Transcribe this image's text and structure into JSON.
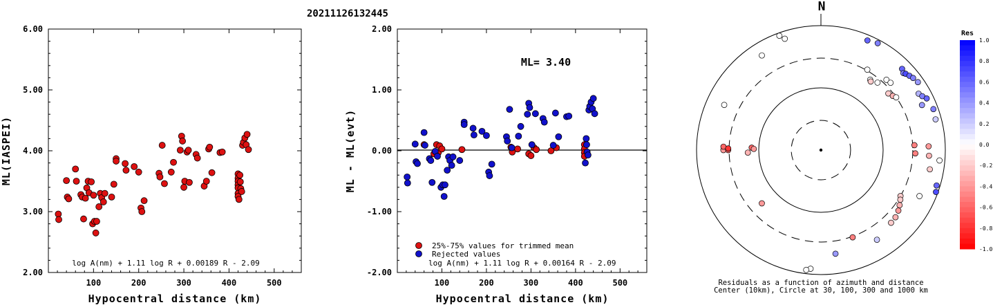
{
  "title": "20211126132445",
  "colors": {
    "red_point": "#dd1111",
    "blue_point": "#1111cc",
    "res_positive": "#0000ff",
    "res_negative": "#ff0000"
  },
  "chart_data": [
    {
      "type": "scatter",
      "id": "ml_vs_distance",
      "xlabel": "Hypocentral distance (km)",
      "ylabel": "ML(IASPEI)",
      "xlim": [
        0,
        560
      ],
      "ylim": [
        2.0,
        6.0
      ],
      "x_ticks": [
        "100",
        "200",
        "300",
        "400",
        "500"
      ],
      "y_ticks": [
        "2.00",
        "3.00",
        "4.00",
        "5.00",
        "6.00"
      ],
      "formula": "log A(nm) + 1.11 log R + 0.00189 R - 2.09",
      "series": [
        {
          "color": "#dd1111",
          "points": [
            [
              22,
              2.96
            ],
            [
              23,
              2.87
            ],
            [
              40,
              3.51
            ],
            [
              42,
              3.24
            ],
            [
              45,
              3.21
            ],
            [
              60,
              3.7
            ],
            [
              62,
              3.5
            ],
            [
              72,
              3.28
            ],
            [
              75,
              3.24
            ],
            [
              78,
              2.88
            ],
            [
              82,
              3.22
            ],
            [
              85,
              3.39
            ],
            [
              88,
              3.5
            ],
            [
              90,
              3.31
            ],
            [
              95,
              3.49
            ],
            [
              98,
              2.8
            ],
            [
              100,
              3.27
            ],
            [
              102,
              2.84
            ],
            [
              105,
              2.65
            ],
            [
              107,
              2.84
            ],
            [
              112,
              3.08
            ],
            [
              115,
              3.3
            ],
            [
              118,
              3.23
            ],
            [
              122,
              3.16
            ],
            [
              125,
              3.3
            ],
            [
              140,
              3.24
            ],
            [
              145,
              3.45
            ],
            [
              150,
              3.87
            ],
            [
              150,
              3.83
            ],
            [
              170,
              3.79
            ],
            [
              172,
              3.68
            ],
            [
              190,
              3.74
            ],
            [
              200,
              3.65
            ],
            [
              205,
              3.06
            ],
            [
              207,
              3.0
            ],
            [
              212,
              3.18
            ],
            [
              245,
              3.63
            ],
            [
              247,
              3.57
            ],
            [
              252,
              4.09
            ],
            [
              257,
              3.46
            ],
            [
              272,
              3.65
            ],
            [
              277,
              3.81
            ],
            [
              292,
              4.01
            ],
            [
              295,
              4.24
            ],
            [
              297,
              4.16
            ],
            [
              300,
              3.4
            ],
            [
              302,
              3.5
            ],
            [
              307,
              3.98
            ],
            [
              310,
              4.01
            ],
            [
              312,
              3.48
            ],
            [
              327,
              3.94
            ],
            [
              330,
              3.88
            ],
            [
              345,
              3.42
            ],
            [
              350,
              3.5
            ],
            [
              355,
              4.03
            ],
            [
              357,
              4.06
            ],
            [
              362,
              3.64
            ],
            [
              380,
              3.97
            ],
            [
              385,
              3.98
            ],
            [
              420,
              3.62
            ],
            [
              420,
              3.55
            ],
            [
              420,
              3.5
            ],
            [
              420,
              3.44
            ],
            [
              420,
              3.39
            ],
            [
              420,
              3.3
            ],
            [
              420,
              3.25
            ],
            [
              422,
              3.2
            ],
            [
              424,
              3.6
            ],
            [
              425,
              3.49
            ],
            [
              426,
              3.38
            ],
            [
              428,
              3.33
            ],
            [
              430,
              4.09
            ],
            [
              432,
              4.14
            ],
            [
              435,
              4.21
            ],
            [
              438,
              4.1
            ],
            [
              440,
              4.27
            ],
            [
              443,
              4.02
            ]
          ]
        }
      ]
    },
    {
      "type": "scatter",
      "id": "residual_vs_distance",
      "xlabel": "Hypocentral distance (km)",
      "ylabel": "ML - ML(evt)",
      "xlim": [
        0,
        560
      ],
      "ylim": [
        -2.0,
        2.0
      ],
      "x_ticks": [
        "100",
        "200",
        "300",
        "400",
        "500"
      ],
      "y_ticks": [
        "-2.00",
        "-1.00",
        "0.00",
        "1.00",
        "2.00"
      ],
      "annotation": "ML= 3.40",
      "formula": "log A(nm) + 1.11 log R + 0.00164 R - 2.09",
      "legend": [
        "25%-75% values for trimmed mean",
        "Rejected values"
      ],
      "series": [
        {
          "name": "25%-75% values for trimmed mean",
          "color": "#dd1111",
          "points": [
            [
              60,
              0.1
            ],
            [
              82,
              -0.05
            ],
            [
              88,
              0.1
            ],
            [
              92,
              -0.03
            ],
            [
              95,
              0.08
            ],
            [
              100,
              0.03
            ],
            [
              145,
              0.02
            ],
            [
              255,
              0.06
            ],
            [
              258,
              -0.02
            ],
            [
              270,
              0.03
            ],
            [
              295,
              -0.05
            ],
            [
              300,
              -0.08
            ],
            [
              307,
              0.05
            ],
            [
              312,
              0.02
            ],
            [
              345,
              0.0
            ],
            [
              357,
              0.05
            ],
            [
              420,
              0.1
            ],
            [
              420,
              0.03
            ],
            [
              420,
              -0.03
            ],
            [
              420,
              -0.09
            ]
          ]
        },
        {
          "name": "Rejected values",
          "color": "#1111cc",
          "points": [
            [
              22,
              -0.43
            ],
            [
              23,
              -0.53
            ],
            [
              40,
              0.11
            ],
            [
              42,
              -0.18
            ],
            [
              45,
              -0.21
            ],
            [
              60,
              0.3
            ],
            [
              62,
              0.09
            ],
            [
              72,
              -0.13
            ],
            [
              75,
              -0.16
            ],
            [
              78,
              -0.52
            ],
            [
              85,
              -0.01
            ],
            [
              90,
              -0.09
            ],
            [
              98,
              -0.6
            ],
            [
              102,
              -0.56
            ],
            [
              105,
              -0.75
            ],
            [
              107,
              -0.56
            ],
            [
              112,
              -0.32
            ],
            [
              115,
              -0.1
            ],
            [
              118,
              -0.16
            ],
            [
              122,
              -0.24
            ],
            [
              125,
              -0.1
            ],
            [
              140,
              -0.16
            ],
            [
              150,
              0.47
            ],
            [
              150,
              0.43
            ],
            [
              170,
              0.37
            ],
            [
              172,
              0.26
            ],
            [
              190,
              0.32
            ],
            [
              200,
              0.25
            ],
            [
              205,
              -0.35
            ],
            [
              207,
              -0.41
            ],
            [
              212,
              -0.22
            ],
            [
              245,
              0.23
            ],
            [
              247,
              0.16
            ],
            [
              252,
              0.68
            ],
            [
              257,
              0.05
            ],
            [
              272,
              0.24
            ],
            [
              277,
              0.4
            ],
            [
              292,
              0.6
            ],
            [
              295,
              0.78
            ],
            [
              297,
              0.71
            ],
            [
              302,
              0.1
            ],
            [
              310,
              0.61
            ],
            [
              327,
              0.53
            ],
            [
              330,
              0.47
            ],
            [
              350,
              0.09
            ],
            [
              355,
              0.62
            ],
            [
              362,
              0.23
            ],
            [
              380,
              0.56
            ],
            [
              385,
              0.57
            ],
            [
              422,
              -0.2
            ],
            [
              424,
              0.2
            ],
            [
              425,
              0.1
            ],
            [
              426,
              -0.02
            ],
            [
              428,
              -0.07
            ],
            [
              430,
              0.67
            ],
            [
              432,
              0.73
            ],
            [
              435,
              0.8
            ],
            [
              438,
              0.69
            ],
            [
              440,
              0.86
            ],
            [
              443,
              0.61
            ]
          ]
        }
      ]
    },
    {
      "type": "scatter",
      "id": "azimuth_residual_map",
      "north_label": "N",
      "caption_line1": "Residuals as a function of azimuth and distance",
      "caption_line2": "Center (10km), Circle at 30, 100, 300 and 1000 km",
      "distance_rings_km": [
        30,
        100,
        300,
        1000
      ],
      "colorbar_title": "Res",
      "colorbar_ticks": [
        "1.0",
        "0.8",
        "0.6",
        "0.4",
        "0.2",
        "0.0",
        "-0.2",
        "-0.4",
        "-0.6",
        "-0.8",
        "-1.0"
      ],
      "points": [
        [
          -20,
          900,
          0.0
        ],
        [
          -18,
          760,
          0.0
        ],
        [
          -32,
          620,
          0.0
        ],
        [
          -65,
          520,
          0.0
        ],
        [
          -90,
          370,
          -0.4
        ],
        [
          -88,
          370,
          -0.6
        ],
        [
          -90,
          310,
          -0.6
        ],
        [
          -89,
          310,
          -0.8
        ],
        [
          -88,
          130,
          -0.6
        ],
        [
          -89,
          120,
          -0.4
        ],
        [
          -92,
          150,
          -0.3
        ],
        [
          23,
          820,
          0.6
        ],
        [
          28,
          880,
          0.5
        ],
        [
          45,
          700,
          0.6
        ],
        [
          47,
          650,
          0.5
        ],
        [
          48,
          680,
          0.7
        ],
        [
          50,
          720,
          0.6
        ],
        [
          52,
          760,
          0.5
        ],
        [
          55,
          800,
          0.4
        ],
        [
          60,
          650,
          0.3
        ],
        [
          62,
          700,
          0.5
        ],
        [
          64,
          780,
          0.6
        ],
        [
          66,
          600,
          0.4
        ],
        [
          70,
          840,
          0.5
        ],
        [
          75,
          810,
          0.2
        ],
        [
          40,
          260,
          0.0
        ],
        [
          35,
          240,
          0.0
        ],
        [
          36,
          230,
          -0.2
        ],
        [
          30,
          310,
          0.0
        ],
        [
          43,
          350,
          0.0
        ],
        [
          46,
          360,
          0.0
        ],
        [
          50,
          260,
          -0.2
        ],
        [
          53,
          280,
          -0.3
        ],
        [
          55,
          300,
          0.0
        ],
        [
          87,
          320,
          -0.5
        ],
        [
          88,
          540,
          -0.4
        ],
        [
          92,
          330,
          -0.5
        ],
        [
          93,
          550,
          -0.3
        ],
        [
          95,
          820,
          0.0
        ],
        [
          100,
          600,
          -0.2
        ],
        [
          107,
          880,
          0.6
        ],
        [
          110,
          930,
          0.7
        ],
        [
          120,
          300,
          -0.2
        ],
        [
          122,
          320,
          -0.2
        ],
        [
          125,
          350,
          -0.3
        ],
        [
          128,
          380,
          -0.4
        ],
        [
          132,
          410,
          -0.3
        ],
        [
          136,
          420,
          -0.2
        ],
        [
          148,
          500,
          0.2
        ],
        [
          160,
          310,
          -0.5
        ],
        [
          172,
          480,
          0.4
        ],
        [
          185,
          820,
          0.0
        ],
        [
          187,
          870,
          0.0
        ],
        [
          228,
          190,
          -0.4
        ],
        [
          115,
          560,
          0.0
        ]
      ]
    }
  ]
}
